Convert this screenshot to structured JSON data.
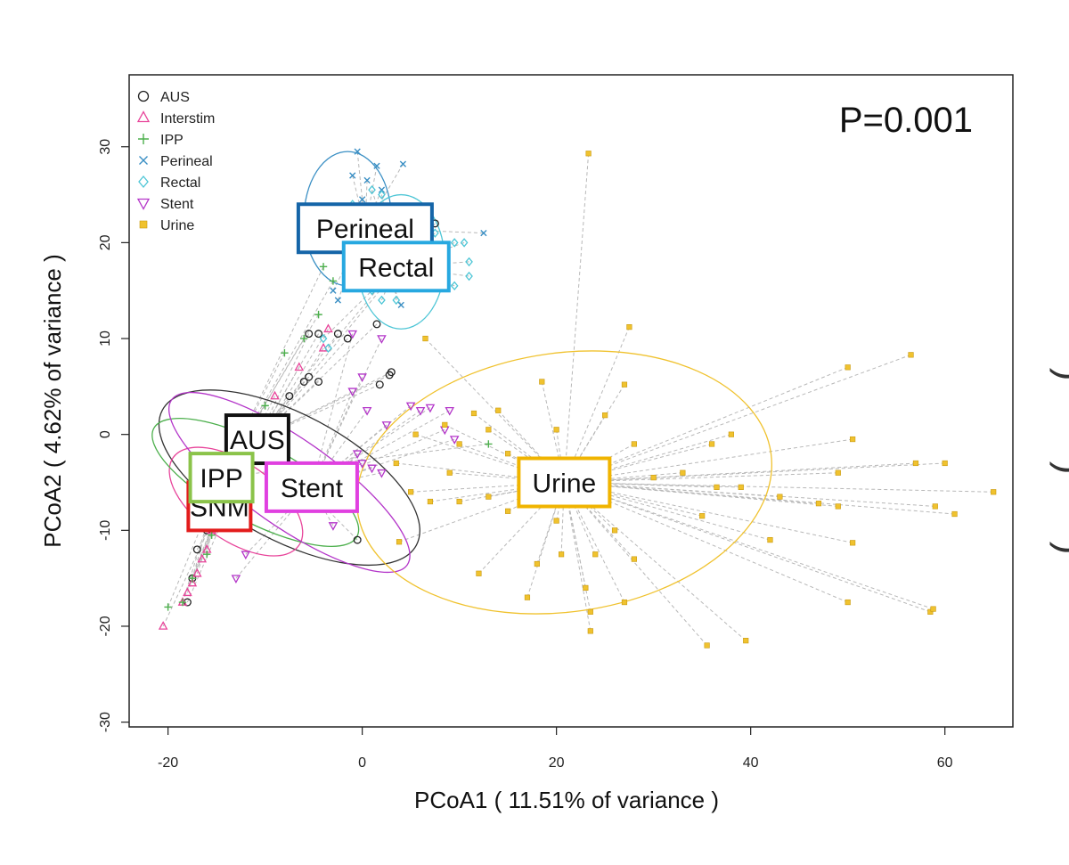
{
  "chart_data": {
    "type": "scatter",
    "title": "",
    "xlabel": "PCoA1 ( 11.51% of variance )",
    "ylabel": "PCoA2 ( 4.62% of variance )",
    "xlim": [
      -24,
      67
    ],
    "ylim": [
      -30.5,
      37.5
    ],
    "xticks": [
      -20,
      0,
      20,
      40,
      60
    ],
    "yticks": [
      -30,
      -20,
      -10,
      0,
      10,
      20,
      30
    ],
    "grid": false,
    "legend_position": "top-left",
    "annotation": "P=0.001",
    "edge_text": [
      "(",
      "(",
      "("
    ],
    "series": [
      {
        "name": "AUS",
        "marker": "circle",
        "color": "#222222",
        "centroid": [
          -10.8,
          -0.5
        ],
        "label": "AUS",
        "label_box_color": "#111111",
        "ellipse": {
          "cx": -7.5,
          "cy": -4.5,
          "rx": 6.5,
          "ry": 15,
          "angle": -62,
          "color": "#333333"
        },
        "points": [
          [
            -5.5,
            10.5
          ],
          [
            -4.5,
            10.5
          ],
          [
            -2.5,
            10.5
          ],
          [
            -1.5,
            10
          ],
          [
            1.5,
            11.5
          ],
          [
            2.8,
            6.2
          ],
          [
            3,
            6.5
          ],
          [
            1.8,
            5.2
          ],
          [
            -4.5,
            5.5
          ],
          [
            -5.5,
            6
          ],
          [
            -6,
            5.5
          ],
          [
            -7.5,
            4
          ],
          [
            -12,
            -6.5
          ],
          [
            -13,
            -7.5
          ],
          [
            -14,
            -8
          ],
          [
            -15,
            -9
          ],
          [
            -16,
            -10
          ],
          [
            -17,
            -12
          ],
          [
            -17.5,
            -15
          ],
          [
            -18,
            -17.5
          ],
          [
            -0.5,
            -11
          ],
          [
            7.5,
            22
          ]
        ]
      },
      {
        "name": "Interstim",
        "marker": "triangle",
        "color": "#e8449a",
        "centroid": [
          -14.7,
          -7.5
        ],
        "label": "SNM",
        "label_box_color": "#e31c1c",
        "ellipse": {
          "cx": -13,
          "cy": -7,
          "rx": 4,
          "ry": 8,
          "angle": -55,
          "color": "#e8449a"
        },
        "points": [
          [
            -3.5,
            11
          ],
          [
            -4,
            9
          ],
          [
            -6.5,
            7
          ],
          [
            -9,
            4
          ],
          [
            -11,
            -1
          ],
          [
            -13,
            -5
          ],
          [
            -14.5,
            -8
          ],
          [
            -15.5,
            -10
          ],
          [
            -16,
            -12
          ],
          [
            -16.5,
            -13
          ],
          [
            -17,
            -14.5
          ],
          [
            -17.5,
            -15.5
          ],
          [
            -18,
            -16.5
          ],
          [
            -18.5,
            -17.5
          ],
          [
            -20.5,
            -20
          ]
        ]
      },
      {
        "name": "IPP",
        "marker": "plus",
        "color": "#4caf4c",
        "centroid": [
          -14.5,
          -4.5
        ],
        "label": "IPP",
        "label_box_color": "#8bc34a",
        "ellipse": {
          "cx": -11,
          "cy": -5,
          "rx": 4,
          "ry": 12,
          "angle": -62,
          "color": "#4caf4c"
        },
        "points": [
          [
            -4,
            17.5
          ],
          [
            -3,
            16
          ],
          [
            -4.5,
            12.5
          ],
          [
            -6,
            10
          ],
          [
            -8,
            8.5
          ],
          [
            -10,
            3
          ],
          [
            -12,
            -4
          ],
          [
            -13.5,
            -6.5
          ],
          [
            -14.5,
            -8.5
          ],
          [
            -15.5,
            -10.5
          ],
          [
            -16,
            -12.5
          ],
          [
            -17.5,
            -15
          ],
          [
            -18.5,
            -17.5
          ],
          [
            -20,
            -18
          ],
          [
            13,
            -1
          ]
        ]
      },
      {
        "name": "Perineal",
        "marker": "x",
        "color": "#3a8fc4",
        "centroid": [
          0.3,
          21.5
        ],
        "label": "Perineal",
        "label_box_color": "#1565a8",
        "ellipse": {
          "cx": -1.5,
          "cy": 22.5,
          "rx": 4.5,
          "ry": 7,
          "angle": 0,
          "color": "#3a8fc4"
        },
        "points": [
          [
            -0.5,
            29.5
          ],
          [
            1.5,
            28
          ],
          [
            4.2,
            28.2
          ],
          [
            -1,
            27
          ],
          [
            0.5,
            26.5
          ],
          [
            2,
            25.5
          ],
          [
            0,
            24.5
          ],
          [
            -2,
            23
          ],
          [
            3,
            22.5
          ],
          [
            -1,
            21
          ],
          [
            1,
            20
          ],
          [
            -2.5,
            19.5
          ],
          [
            3.5,
            19
          ],
          [
            2.5,
            17.5
          ],
          [
            12.5,
            21
          ],
          [
            6.5,
            19
          ],
          [
            -3,
            15
          ],
          [
            -2.5,
            14
          ],
          [
            4,
            13.5
          ]
        ]
      },
      {
        "name": "Rectal",
        "marker": "diamond",
        "color": "#4ec6d6",
        "centroid": [
          3.5,
          17.5
        ],
        "label": "Rectal",
        "label_box_color": "#27a8e0",
        "ellipse": {
          "cx": 4,
          "cy": 18,
          "rx": 4.5,
          "ry": 7,
          "angle": 0,
          "color": "#4ec6d6"
        },
        "points": [
          [
            1,
            25.5
          ],
          [
            2,
            25
          ],
          [
            -1,
            24
          ],
          [
            7.5,
            21
          ],
          [
            9.5,
            20
          ],
          [
            10.5,
            20
          ],
          [
            11,
            18
          ],
          [
            8.5,
            17.5
          ],
          [
            5.5,
            17
          ],
          [
            3,
            16
          ],
          [
            1,
            15
          ],
          [
            9.5,
            15.5
          ],
          [
            11,
            16.5
          ],
          [
            2,
            14
          ],
          [
            3.5,
            14
          ],
          [
            -3.5,
            9
          ],
          [
            -4,
            10
          ]
        ]
      },
      {
        "name": "Stent",
        "marker": "triangle-down",
        "color": "#b436c9",
        "centroid": [
          -5.2,
          -5.5
        ],
        "label": "Stent",
        "label_box_color": "#e040e0",
        "ellipse": {
          "cx": -7.5,
          "cy": -5,
          "rx": 4.5,
          "ry": 15,
          "angle": -55,
          "color": "#b436c9"
        },
        "points": [
          [
            -1,
            10.5
          ],
          [
            2,
            10
          ],
          [
            0,
            6
          ],
          [
            -1,
            4.5
          ],
          [
            0.5,
            2.5
          ],
          [
            2.5,
            1
          ],
          [
            5,
            3
          ],
          [
            6,
            2.5
          ],
          [
            7,
            2.8
          ],
          [
            9,
            2.5
          ],
          [
            8.5,
            0.5
          ],
          [
            9.5,
            -0.5
          ],
          [
            -0.5,
            -2
          ],
          [
            0,
            -3
          ],
          [
            1,
            -3.5
          ],
          [
            2,
            -4
          ],
          [
            -1.5,
            -6.5
          ],
          [
            -3,
            -9.5
          ],
          [
            -12,
            -12.5
          ],
          [
            -13,
            -15
          ]
        ]
      },
      {
        "name": "Urine",
        "marker": "square",
        "color": "#f0c22e",
        "centroid": [
          20.8,
          -5.0
        ],
        "label": "Urine",
        "label_box_color": "#f0b400",
        "ellipse": {
          "cx": 20.8,
          "cy": -5.0,
          "rx": 21.5,
          "ry": 13.5,
          "angle": -8,
          "color": "#f0c22e"
        },
        "points": [
          [
            23.3,
            29.3
          ],
          [
            27.5,
            11.2
          ],
          [
            6.5,
            10
          ],
          [
            18.5,
            5.5
          ],
          [
            27,
            5.2
          ],
          [
            14,
            2.5
          ],
          [
            11.5,
            2.2
          ],
          [
            25,
            2
          ],
          [
            13,
            0.5
          ],
          [
            20,
            0.5
          ],
          [
            8.5,
            1
          ],
          [
            5.5,
            0
          ],
          [
            10,
            -1
          ],
          [
            15,
            -2
          ],
          [
            28,
            -1
          ],
          [
            36,
            -1
          ],
          [
            38,
            0
          ],
          [
            50.5,
            -0.5
          ],
          [
            56.5,
            8.3
          ],
          [
            50,
            7
          ],
          [
            49,
            -4
          ],
          [
            57,
            -3
          ],
          [
            60,
            -3
          ],
          [
            65,
            -6
          ],
          [
            61,
            -8.3
          ],
          [
            59,
            -7.5
          ],
          [
            47,
            -7.2
          ],
          [
            43,
            -6.5
          ],
          [
            39,
            -5.5
          ],
          [
            36.5,
            -5.5
          ],
          [
            30,
            -4.5
          ],
          [
            33,
            -4
          ],
          [
            13,
            -6.5
          ],
          [
            10,
            -7
          ],
          [
            7,
            -7
          ],
          [
            5,
            -6
          ],
          [
            3.5,
            -3
          ],
          [
            3.8,
            -11.2
          ],
          [
            20,
            -9
          ],
          [
            18,
            -13.5
          ],
          [
            20.5,
            -12.5
          ],
          [
            24,
            -12.5
          ],
          [
            28,
            -13
          ],
          [
            23,
            -16
          ],
          [
            23.5,
            -18.5
          ],
          [
            27,
            -17.5
          ],
          [
            17,
            -17
          ],
          [
            12,
            -14.5
          ],
          [
            23.5,
            -20.5
          ],
          [
            35.5,
            -22
          ],
          [
            39.5,
            -21.5
          ],
          [
            42,
            -11
          ],
          [
            49,
            -7.5
          ],
          [
            50,
            -17.5
          ],
          [
            58.5,
            -18.5
          ],
          [
            58.8,
            -18.2
          ],
          [
            50.5,
            -11.3
          ],
          [
            35,
            -8.5
          ],
          [
            26,
            -10
          ],
          [
            15,
            -8
          ],
          [
            9,
            -4
          ]
        ]
      }
    ]
  }
}
